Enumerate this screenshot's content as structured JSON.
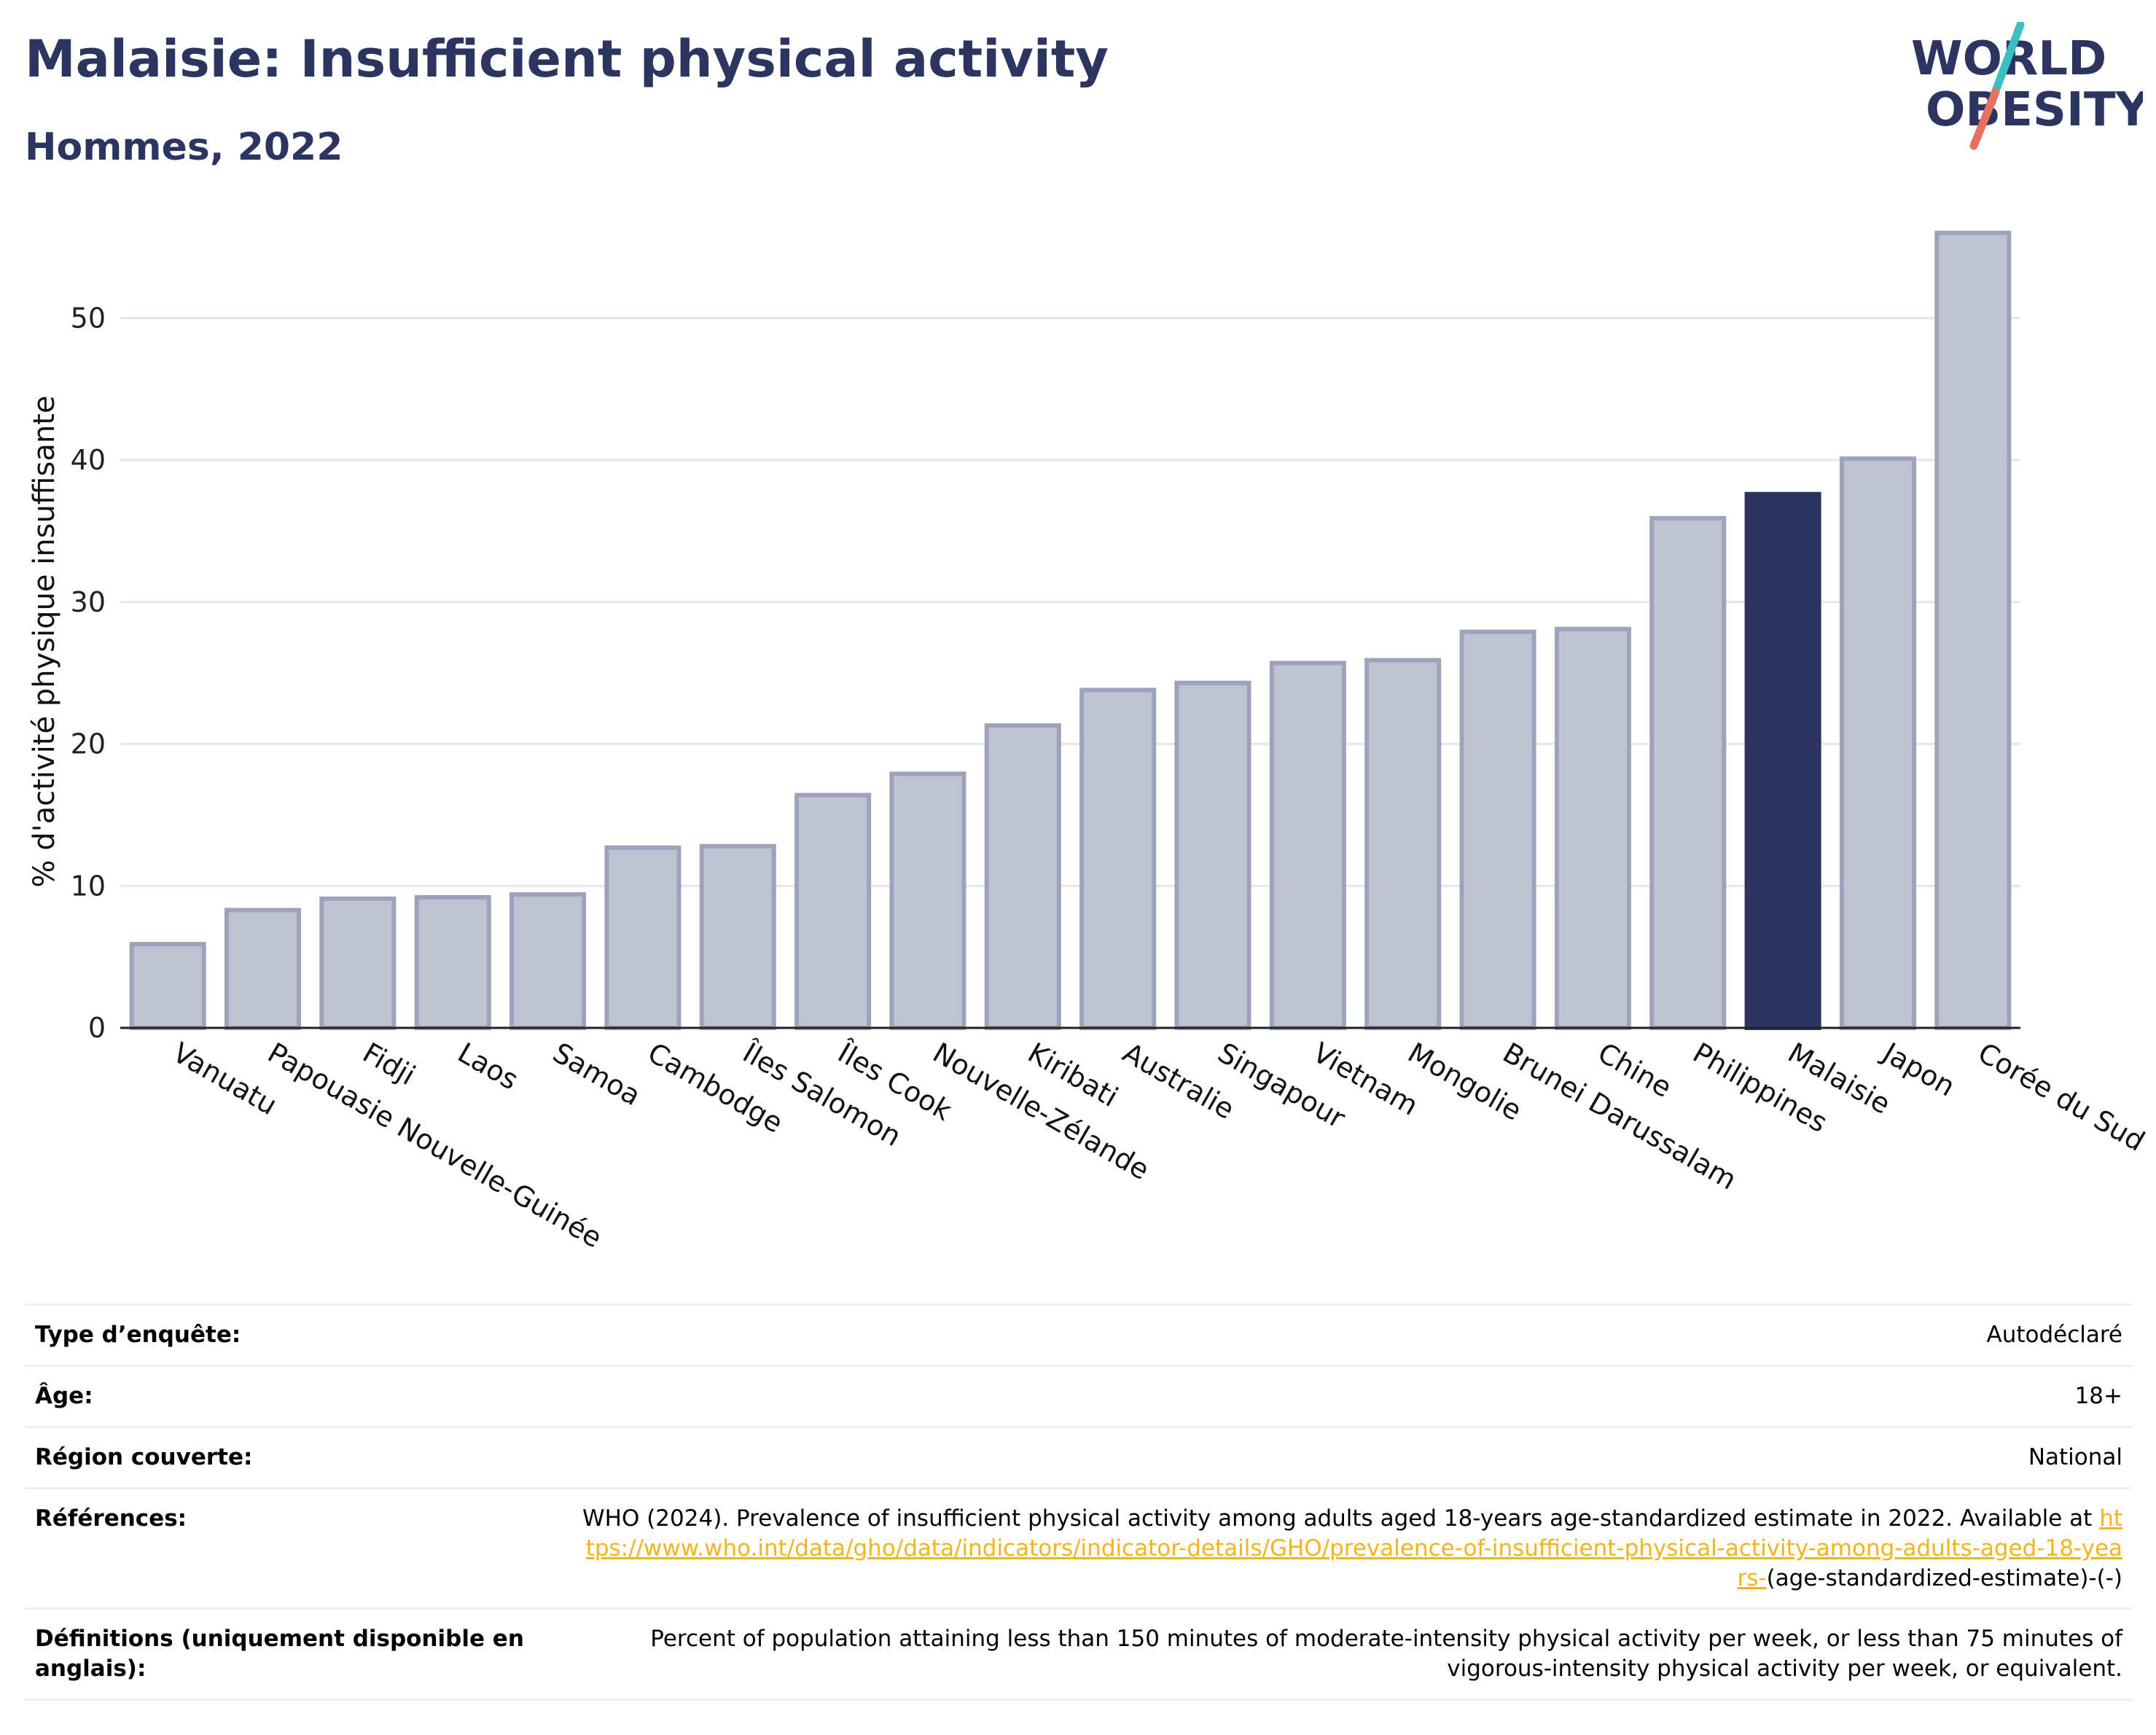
{
  "header": {
    "title": "Malaisie: Insufficient physical activity",
    "subtitle": "Hommes, 2022"
  },
  "logo": {
    "line1": "WORLD",
    "line2": "OBESITY",
    "text_color": "#2b3560",
    "slash_top_color": "#3bbfc3",
    "slash_bottom_color": "#e8705f"
  },
  "chart_data": {
    "type": "bar",
    "ylabel": "% d'activité physique insuffisante",
    "xlabel": "",
    "ylim": [
      0,
      57
    ],
    "yticks": [
      0,
      10,
      20,
      30,
      40,
      50
    ],
    "grid": true,
    "categories": [
      "Vanuatu",
      "Papouasie Nouvelle-Guinée",
      "Fidji",
      "Laos",
      "Samoa",
      "Cambodge",
      "Îles Salomon",
      "Îles Cook",
      "Nouvelle-Zélande",
      "Kiribati",
      "Australie",
      "Singapour",
      "Vietnam",
      "Mongolie",
      "Brunei Darussalam",
      "Chine",
      "Philippines",
      "Malaisie",
      "Japon",
      "Corée du Sud"
    ],
    "values": [
      5.9,
      8.3,
      9.1,
      9.2,
      9.4,
      12.7,
      12.8,
      16.4,
      17.9,
      21.3,
      23.8,
      24.3,
      25.7,
      25.9,
      27.9,
      28.1,
      35.9,
      37.6,
      40.1,
      56.0
    ],
    "highlight": "Malaisie",
    "bar_color": "#bfc2d0",
    "bar_border_color": "#9ea3bb",
    "highlight_color": "#2b3560"
  },
  "table": {
    "rows": [
      {
        "label": "Type d’enquête:",
        "value": "Autodéclaré"
      },
      {
        "label": "Âge:",
        "value": "18+"
      },
      {
        "label": "Région couverte:",
        "value": "National"
      }
    ],
    "references": {
      "label": "Références:",
      "text": "WHO (2024). Prevalence of insufficient physical activity among adults aged 18-years age-standardized estimate in 2022. Available at",
      "link": "https://www.who.int/data/gho/data/indicators/indicator-details/GHO/prevalence-of-insufficient-physical-activity-among-adults-aged-18-years-",
      "suffix": "(age-standardized-estimate)-(-)"
    },
    "definitions": {
      "label": "Définitions (uniquement disponible en anglais):",
      "value": "Percent of population attaining less than 150 minutes of moderate-intensity physical activity per week, or less than 75 minutes of vigorous-intensity physical activity per week, or equivalent."
    }
  }
}
